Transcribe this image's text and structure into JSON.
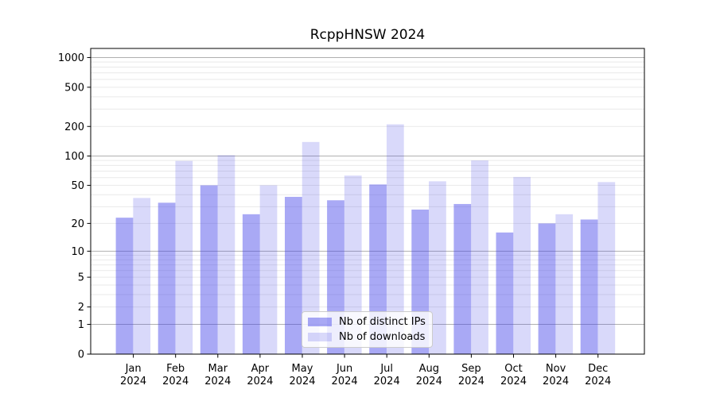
{
  "chart_data": {
    "type": "bar",
    "title": "RcppHNSW 2024",
    "categories": [
      "Jan",
      "Feb",
      "Mar",
      "Apr",
      "May",
      "Jun",
      "Jul",
      "Aug",
      "Sep",
      "Oct",
      "Nov",
      "Dec"
    ],
    "x_tick_year": "2024",
    "series": [
      {
        "name": "Nb of distinct IPs",
        "color": "#4040E873",
        "values": [
          23,
          33,
          50,
          25,
          38,
          35,
          51,
          28,
          32,
          16,
          20,
          22
        ]
      },
      {
        "name": "Nb of downloads",
        "color": "#4040E833",
        "values": [
          37,
          89,
          102,
          50,
          139,
          63,
          210,
          55,
          90,
          61,
          25,
          54
        ]
      }
    ],
    "y_scale": "log1p",
    "ylim": [
      0,
      1200
    ],
    "y_ticks": [
      0,
      1,
      2,
      5,
      10,
      20,
      50,
      100,
      200,
      500,
      1000
    ],
    "y_major_gridlines": [
      1,
      10,
      100,
      1000
    ],
    "grid": true,
    "legend_position": "bottom-center",
    "xlabel": "",
    "ylabel": ""
  }
}
